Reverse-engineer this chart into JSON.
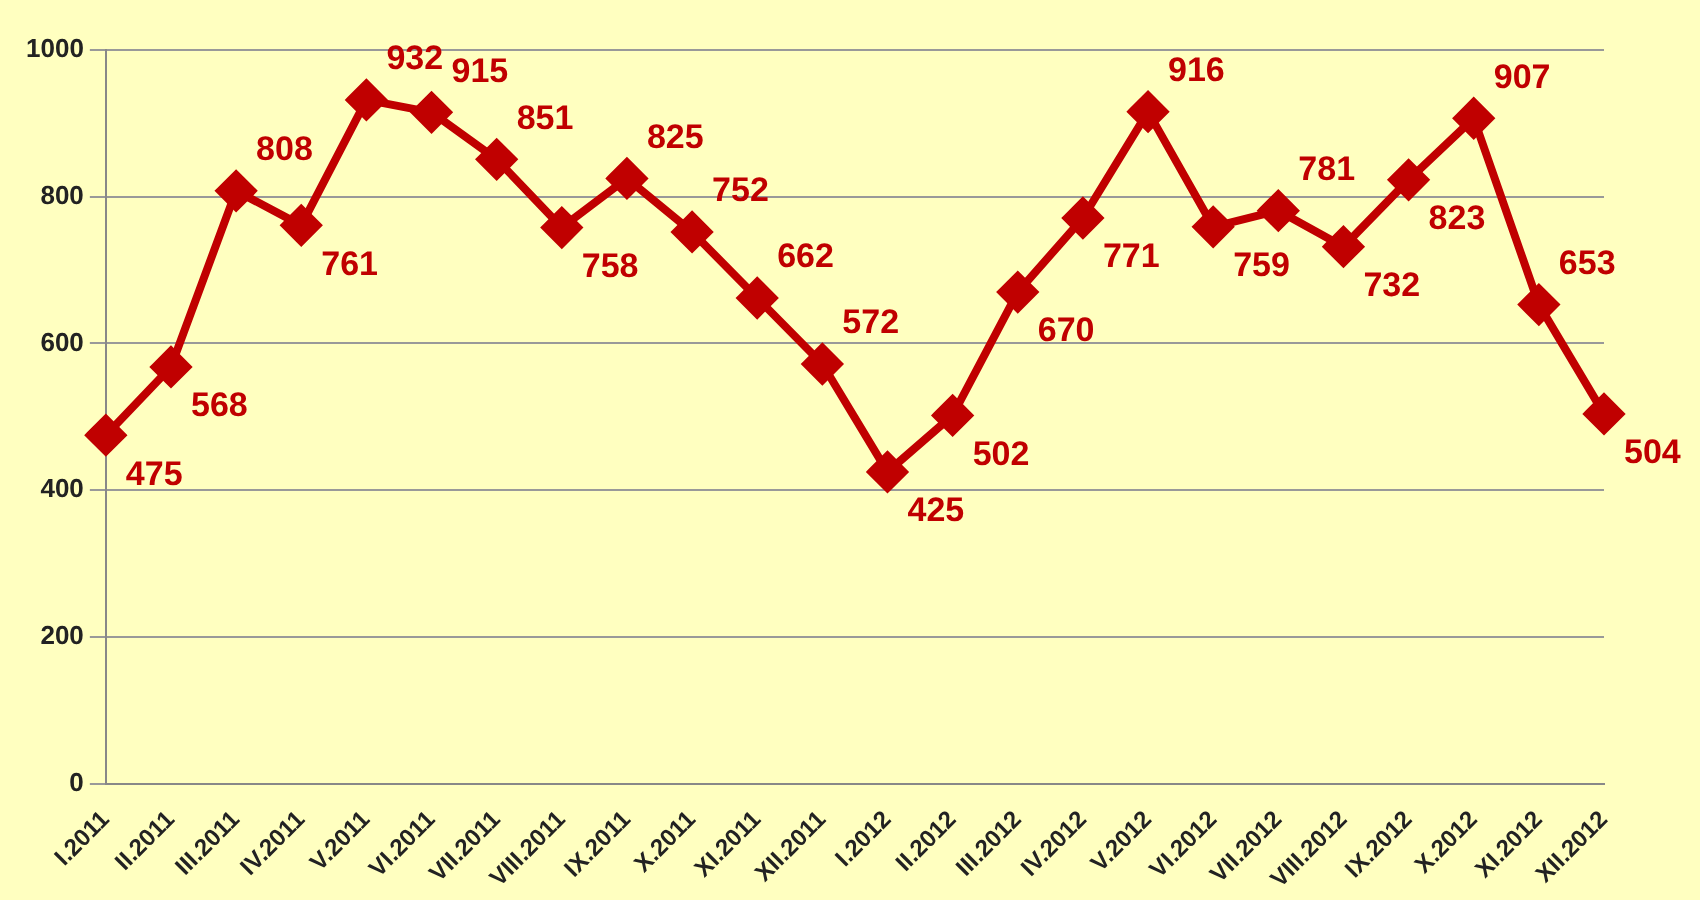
{
  "chart_data": {
    "type": "line",
    "categories": [
      "I.2011",
      "II.2011",
      "III.2011",
      "IV.2011",
      "V.2011",
      "VI.2011",
      "VII.2011",
      "VIII.2011",
      "IX.2011",
      "X.2011",
      "XI.2011",
      "XII.2011",
      "I.2012",
      "II.2012",
      "III.2012",
      "IV.2012",
      "V.2012",
      "VI.2012",
      "VII.2012",
      "VIII.2012",
      "IX.2012",
      "X.2012",
      "XI.2012",
      "XII.2012"
    ],
    "series": [
      {
        "color": "#c00000",
        "values": [
          475,
          568,
          808,
          761,
          932,
          915,
          851,
          758,
          825,
          752,
          662,
          572,
          425,
          502,
          670,
          771,
          916,
          759,
          781,
          732,
          823,
          907,
          653,
          504
        ]
      }
    ],
    "ylim": [
      0,
      1000
    ],
    "yticks": [
      0,
      200,
      400,
      600,
      800,
      1000
    ],
    "grid": "y",
    "legend": false,
    "marker": "diamond",
    "line_style": "solid",
    "data_labels": true
  }
}
